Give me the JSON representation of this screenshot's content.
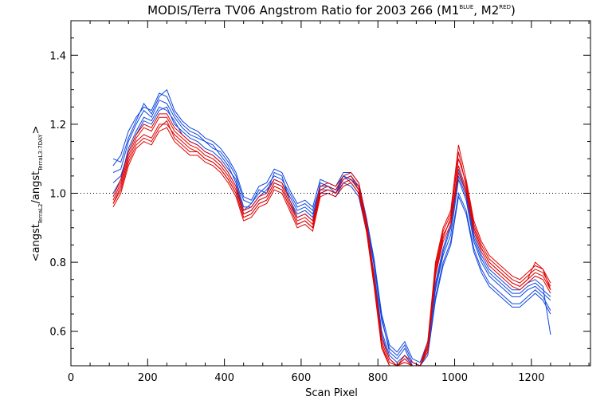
{
  "chart_data": {
    "type": "line",
    "title": {
      "main": "MODIS/Terra TV06 Angstrom Ratio for 2003 266 (M1",
      "sup1": "BLUE",
      "mid": ", M2",
      "sup2": "RED",
      "end": ")"
    },
    "xlabel": "Scan Pixel",
    "ylabel": {
      "p1": "<angst",
      "s1": "TerraL2",
      "p2": "/angst",
      "s2": "TerraL3:7DAY",
      "p3": ">"
    },
    "xlim": [
      0,
      1354
    ],
    "ylim": [
      0.5,
      1.5
    ],
    "x_ticks": [
      "0",
      "200",
      "400",
      "600",
      "800",
      "1000",
      "1200"
    ],
    "y_ticks": [
      "0.6",
      "0.8",
      "1.0",
      "1.2",
      "1.4"
    ],
    "reference_line": 1.0,
    "colors": {
      "blue": "#1048e0",
      "red": "#e00000",
      "axis": "#000000"
    },
    "x": [
      110,
      130,
      150,
      170,
      190,
      210,
      230,
      250,
      270,
      290,
      310,
      330,
      350,
      370,
      390,
      410,
      430,
      450,
      470,
      490,
      510,
      530,
      550,
      570,
      590,
      610,
      630,
      650,
      670,
      690,
      710,
      730,
      750,
      770,
      790,
      800,
      810,
      830,
      850,
      870,
      890,
      910,
      930,
      950,
      970,
      990,
      1010,
      1030,
      1050,
      1070,
      1090,
      1110,
      1130,
      1150,
      1170,
      1190,
      1210,
      1230,
      1250
    ],
    "series": [
      {
        "color": "blue",
        "values": [
          1.06,
          1.07,
          1.15,
          1.2,
          1.24,
          1.22,
          1.27,
          1.26,
          1.22,
          1.19,
          1.17,
          1.16,
          1.15,
          1.13,
          1.12,
          1.09,
          1.05,
          0.98,
          0.97,
          1.0,
          1.02,
          1.05,
          1.04,
          1.0,
          0.96,
          0.97,
          0.95,
          1.02,
          1.02,
          1.01,
          1.05,
          1.04,
          1.02,
          0.92,
          0.8,
          0.72,
          0.64,
          0.54,
          0.52,
          0.55,
          0.5,
          0.5,
          0.55,
          0.72,
          0.82,
          0.88,
          1.04,
          0.98,
          0.86,
          0.8,
          0.76,
          0.74,
          0.72,
          0.7,
          0.7,
          0.72,
          0.73,
          0.71,
          0.69
        ]
      },
      {
        "color": "blue",
        "values": [
          1.08,
          1.11,
          1.18,
          1.22,
          1.25,
          1.24,
          1.29,
          1.28,
          1.23,
          1.2,
          1.18,
          1.17,
          1.15,
          1.14,
          1.11,
          1.08,
          1.03,
          0.95,
          0.97,
          1.01,
          1.0,
          1.06,
          1.05,
          0.98,
          0.94,
          0.95,
          0.93,
          1.03,
          1.02,
          1.0,
          1.04,
          1.05,
          1.01,
          0.9,
          0.77,
          0.69,
          0.6,
          0.53,
          0.51,
          0.53,
          0.5,
          0.5,
          0.54,
          0.7,
          0.8,
          0.86,
          1.0,
          0.95,
          0.84,
          0.78,
          0.74,
          0.72,
          0.7,
          0.68,
          0.68,
          0.7,
          0.72,
          0.7,
          0.66
        ]
      },
      {
        "color": "blue",
        "values": [
          1.03,
          1.05,
          1.12,
          1.17,
          1.21,
          1.2,
          1.24,
          1.25,
          1.2,
          1.18,
          1.16,
          1.15,
          1.13,
          1.12,
          1.1,
          1.07,
          1.04,
          0.96,
          0.96,
          0.99,
          1.01,
          1.04,
          1.03,
          0.99,
          0.95,
          0.96,
          0.94,
          1.01,
          1.01,
          1.0,
          1.05,
          1.03,
          1.0,
          0.91,
          0.79,
          0.71,
          0.63,
          0.55,
          0.53,
          0.56,
          0.51,
          0.5,
          0.56,
          0.73,
          0.83,
          0.9,
          1.05,
          0.99,
          0.87,
          0.81,
          0.77,
          0.75,
          0.73,
          0.71,
          0.71,
          0.73,
          0.74,
          0.72,
          0.7
        ]
      },
      {
        "color": "blue",
        "values": [
          1.1,
          1.09,
          1.16,
          1.21,
          1.26,
          1.23,
          1.28,
          1.3,
          1.24,
          1.21,
          1.19,
          1.18,
          1.16,
          1.15,
          1.13,
          1.1,
          1.06,
          0.99,
          0.98,
          1.02,
          1.03,
          1.07,
          1.06,
          1.01,
          0.97,
          0.98,
          0.96,
          1.04,
          1.03,
          1.02,
          1.06,
          1.06,
          1.03,
          0.93,
          0.81,
          0.73,
          0.65,
          0.56,
          0.54,
          0.57,
          0.52,
          0.51,
          0.57,
          0.74,
          0.84,
          0.91,
          1.07,
          1.0,
          0.88,
          0.82,
          0.78,
          0.76,
          0.74,
          0.72,
          0.72,
          0.74,
          0.75,
          0.73,
          0.59
        ]
      },
      {
        "color": "blue",
        "values": [
          1.0,
          1.04,
          1.13,
          1.18,
          1.22,
          1.21,
          1.25,
          1.24,
          1.21,
          1.17,
          1.15,
          1.14,
          1.12,
          1.11,
          1.09,
          1.06,
          1.02,
          0.94,
          0.95,
          0.98,
          0.99,
          1.03,
          1.02,
          0.97,
          0.93,
          0.94,
          0.92,
          1.0,
          1.0,
          0.99,
          1.03,
          1.02,
          0.99,
          0.89,
          0.76,
          0.68,
          0.59,
          0.52,
          0.5,
          0.52,
          0.5,
          0.5,
          0.53,
          0.69,
          0.79,
          0.85,
          0.99,
          0.94,
          0.83,
          0.77,
          0.73,
          0.71,
          0.69,
          0.67,
          0.67,
          0.69,
          0.71,
          0.69,
          0.65
        ]
      },
      {
        "color": "red",
        "values": [
          0.97,
          1.02,
          1.1,
          1.15,
          1.17,
          1.16,
          1.2,
          1.2,
          1.17,
          1.15,
          1.13,
          1.12,
          1.1,
          1.09,
          1.07,
          1.04,
          1.0,
          0.93,
          0.94,
          0.97,
          0.98,
          1.02,
          1.01,
          0.96,
          0.91,
          0.92,
          0.9,
          1.0,
          1.01,
          1.0,
          1.03,
          1.04,
          1.01,
          0.9,
          0.74,
          0.65,
          0.56,
          0.5,
          0.5,
          0.51,
          0.5,
          0.5,
          0.55,
          0.78,
          0.88,
          0.92,
          1.08,
          1.01,
          0.9,
          0.84,
          0.8,
          0.78,
          0.76,
          0.74,
          0.73,
          0.75,
          0.77,
          0.76,
          0.72
        ]
      },
      {
        "color": "red",
        "values": [
          0.96,
          1.0,
          1.08,
          1.13,
          1.15,
          1.14,
          1.18,
          1.19,
          1.15,
          1.13,
          1.11,
          1.11,
          1.09,
          1.08,
          1.06,
          1.03,
          0.99,
          0.92,
          0.93,
          0.96,
          0.97,
          1.01,
          1.0,
          0.95,
          0.9,
          0.91,
          0.89,
          0.99,
          1.0,
          0.99,
          1.02,
          1.03,
          1.0,
          0.89,
          0.73,
          0.64,
          0.55,
          0.5,
          0.5,
          0.5,
          0.5,
          0.5,
          0.54,
          0.76,
          0.86,
          0.91,
          1.06,
          1.0,
          0.89,
          0.83,
          0.79,
          0.77,
          0.75,
          0.73,
          0.72,
          0.74,
          0.76,
          0.75,
          0.71
        ]
      },
      {
        "color": "red",
        "values": [
          0.98,
          1.03,
          1.11,
          1.16,
          1.19,
          1.18,
          1.22,
          1.22,
          1.18,
          1.16,
          1.14,
          1.13,
          1.11,
          1.1,
          1.08,
          1.05,
          1.01,
          0.94,
          0.95,
          0.98,
          0.99,
          1.03,
          1.02,
          0.97,
          0.92,
          0.93,
          0.91,
          1.01,
          1.02,
          1.01,
          1.04,
          1.05,
          1.02,
          0.91,
          0.75,
          0.66,
          0.57,
          0.51,
          0.5,
          0.52,
          0.5,
          0.5,
          0.56,
          0.79,
          0.89,
          0.94,
          1.1,
          1.03,
          0.91,
          0.85,
          0.81,
          0.79,
          0.77,
          0.75,
          0.74,
          0.76,
          0.78,
          0.77,
          0.73
        ]
      },
      {
        "color": "red",
        "values": [
          0.97,
          1.01,
          1.09,
          1.14,
          1.16,
          1.15,
          1.19,
          1.21,
          1.16,
          1.14,
          1.12,
          1.12,
          1.1,
          1.09,
          1.07,
          1.04,
          1.0,
          0.93,
          0.94,
          0.97,
          0.98,
          1.02,
          1.01,
          0.96,
          0.91,
          0.92,
          0.9,
          1.0,
          1.01,
          1.0,
          1.03,
          1.04,
          1.01,
          0.9,
          0.74,
          0.65,
          0.56,
          0.5,
          0.5,
          0.51,
          0.5,
          0.5,
          0.55,
          0.77,
          0.87,
          0.93,
          1.12,
          1.02,
          0.9,
          0.84,
          0.8,
          0.78,
          0.76,
          0.74,
          0.73,
          0.75,
          0.8,
          0.78,
          0.72
        ]
      },
      {
        "color": "red",
        "values": [
          0.99,
          1.04,
          1.12,
          1.17,
          1.2,
          1.19,
          1.23,
          1.23,
          1.19,
          1.17,
          1.15,
          1.14,
          1.12,
          1.11,
          1.09,
          1.06,
          1.02,
          0.95,
          0.96,
          0.99,
          1.0,
          1.04,
          1.03,
          0.98,
          0.93,
          0.94,
          0.92,
          1.02,
          1.03,
          1.02,
          1.05,
          1.06,
          1.03,
          0.92,
          0.76,
          0.67,
          0.58,
          0.52,
          0.5,
          0.53,
          0.51,
          0.5,
          0.57,
          0.8,
          0.9,
          0.95,
          1.14,
          1.04,
          0.92,
          0.86,
          0.82,
          0.8,
          0.78,
          0.76,
          0.75,
          0.77,
          0.79,
          0.78,
          0.74
        ]
      }
    ]
  }
}
